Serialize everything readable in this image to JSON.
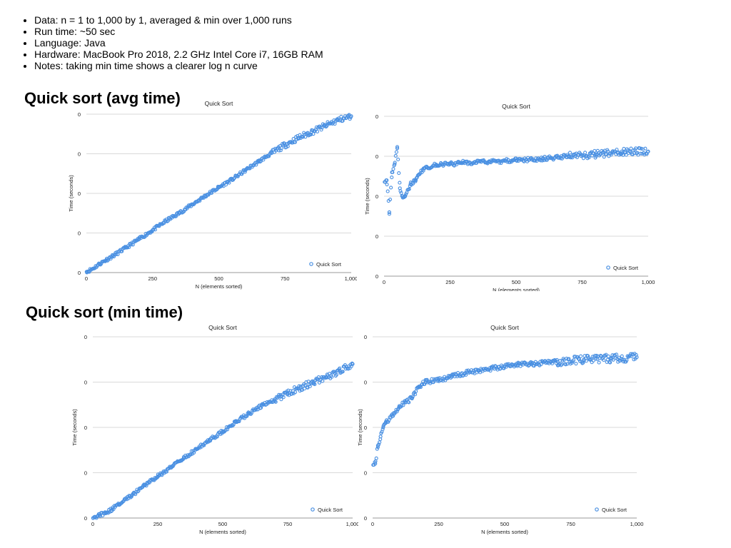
{
  "notes": [
    "Data: n = 1 to 1,000 by 1, averaged & min over 1,000 runs",
    "Run time: ~50 sec",
    "Language: Java",
    "Hardware: MacBook Pro 2018, 2.2 GHz Intel Core i7, 16GB RAM",
    "Notes: taking min time shows a clearer log n curve"
  ],
  "sections": {
    "avg_title": "Quick sort (avg time)",
    "min_title": "Quick sort (min time)"
  },
  "colors": {
    "series": "#4a90e2",
    "grid": "#d9d9d9",
    "axis": "#9a9a9a"
  },
  "chart_data": [
    {
      "id": "avg-total",
      "type": "scatter",
      "title": "Quick Sort",
      "xlabel": "N (elements sorted)",
      "ylabel": "Time (seconds)",
      "xlim": [
        0,
        1000
      ],
      "ylim": [
        0,
        4
      ],
      "x_ticks": [
        0,
        250,
        500,
        750,
        1000
      ],
      "x_tick_labels": [
        "0",
        "250",
        "500",
        "750",
        "1,000"
      ],
      "y_ticks": [
        0,
        1,
        2,
        3,
        4
      ],
      "y_tick_labels": [
        "0",
        "0",
        "0",
        "0",
        "0"
      ],
      "grid": true,
      "legend_position": "bottom-right",
      "series": [
        {
          "name": "Quick Sort",
          "x": [
            1,
            25,
            50,
            75,
            100,
            150,
            200,
            250,
            300,
            350,
            400,
            450,
            500,
            550,
            600,
            650,
            700,
            750,
            800,
            850,
            900,
            950,
            1000
          ],
          "y": [
            0.02,
            0.1,
            0.22,
            0.32,
            0.42,
            0.63,
            0.85,
            1.07,
            1.3,
            1.5,
            1.72,
            1.94,
            2.15,
            2.35,
            2.58,
            2.8,
            3.02,
            3.22,
            3.4,
            3.55,
            3.7,
            3.85,
            3.95
          ]
        }
      ]
    },
    {
      "id": "avg-per-n",
      "type": "scatter",
      "title": "Quick Sort",
      "xlabel": "N (elements sorted)",
      "ylabel": "Time (seconds)",
      "xlim": [
        0,
        1000
      ],
      "ylim": [
        0,
        4
      ],
      "x_ticks": [
        0,
        250,
        500,
        750,
        1000
      ],
      "x_tick_labels": [
        "0",
        "250",
        "500",
        "750",
        "1,000"
      ],
      "y_ticks": [
        0,
        1,
        2,
        3,
        4
      ],
      "y_tick_labels": [
        "0",
        "0",
        "0",
        "0",
        "0"
      ],
      "grid": true,
      "legend_position": "bottom-right",
      "series": [
        {
          "name": "Quick Sort",
          "x": [
            10,
            20,
            30,
            40,
            50,
            60,
            70,
            80,
            100,
            120,
            150,
            200,
            250,
            300,
            400,
            500,
            600,
            700,
            800,
            900,
            1000
          ],
          "y": [
            2.4,
            1.6,
            2.6,
            2.8,
            3.2,
            2.2,
            2.0,
            2.0,
            2.3,
            2.4,
            2.7,
            2.78,
            2.8,
            2.84,
            2.86,
            2.9,
            2.94,
            3.0,
            3.05,
            3.12,
            3.12
          ]
        }
      ]
    },
    {
      "id": "min-total",
      "type": "scatter",
      "title": "Quick Sort",
      "xlabel": "N (elements sorted)",
      "ylabel": "Time (seconds)",
      "xlim": [
        0,
        1000
      ],
      "ylim": [
        0,
        4
      ],
      "x_ticks": [
        0,
        250,
        500,
        750,
        1000
      ],
      "x_tick_labels": [
        "0",
        "250",
        "500",
        "750",
        "1,000"
      ],
      "y_ticks": [
        0,
        1,
        2,
        3,
        4
      ],
      "y_tick_labels": [
        "0",
        "0",
        "0",
        "0",
        "0"
      ],
      "grid": true,
      "legend_position": "bottom-right",
      "series": [
        {
          "name": "Quick Sort",
          "x": [
            1,
            25,
            50,
            75,
            100,
            150,
            200,
            250,
            300,
            350,
            400,
            450,
            500,
            550,
            600,
            650,
            700,
            750,
            800,
            850,
            900,
            950,
            1000
          ],
          "y": [
            0.0,
            0.06,
            0.12,
            0.2,
            0.3,
            0.5,
            0.72,
            0.92,
            1.12,
            1.32,
            1.52,
            1.72,
            1.92,
            2.12,
            2.3,
            2.48,
            2.62,
            2.75,
            2.88,
            3.0,
            3.1,
            3.25,
            3.4
          ]
        }
      ]
    },
    {
      "id": "min-per-n",
      "type": "scatter",
      "title": "Quick Sort",
      "xlabel": "N (elements sorted)",
      "ylabel": "Time (seconds)",
      "xlim": [
        0,
        1000
      ],
      "ylim": [
        0,
        4
      ],
      "x_ticks": [
        0,
        250,
        500,
        750,
        1000
      ],
      "x_tick_labels": [
        "0",
        "250",
        "500",
        "750",
        "1,000"
      ],
      "y_ticks": [
        0,
        1,
        2,
        3,
        4
      ],
      "y_tick_labels": [
        "0",
        "0",
        "0",
        "0",
        "0"
      ],
      "grid": true,
      "legend_position": "bottom-right",
      "series": [
        {
          "name": "Quick Sort",
          "x": [
            10,
            20,
            30,
            40,
            50,
            75,
            100,
            125,
            150,
            175,
            200,
            250,
            300,
            350,
            400,
            450,
            500,
            550,
            600,
            700,
            800,
            900,
            1000
          ],
          "y": [
            1.2,
            1.6,
            1.8,
            2.0,
            2.1,
            2.25,
            2.45,
            2.55,
            2.65,
            2.9,
            3.0,
            3.05,
            3.12,
            3.2,
            3.25,
            3.3,
            3.35,
            3.38,
            3.4,
            3.45,
            3.5,
            3.52,
            3.55
          ]
        }
      ]
    }
  ]
}
